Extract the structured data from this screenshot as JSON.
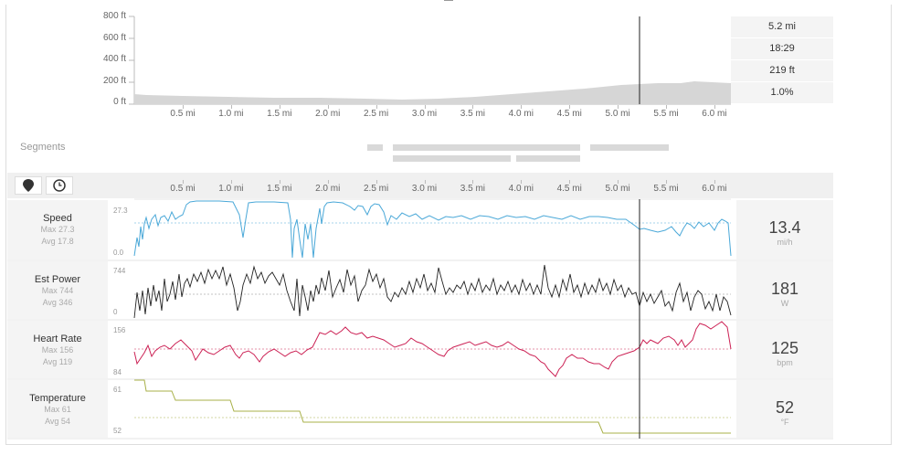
{
  "elevation": {
    "y_labels": [
      "800 ft",
      "600 ft",
      "400 ft",
      "200 ft",
      "0 ft"
    ],
    "x_labels": [
      "0.5 mi",
      "1.0 mi",
      "1.5 mi",
      "2.0 mi",
      "2.5 mi",
      "3.0 mi",
      "3.5 mi",
      "4.0 mi",
      "4.5 mi",
      "5.0 mi",
      "5.5 mi",
      "6.0 mi"
    ]
  },
  "summary": {
    "distance": "5.2 mi",
    "time": "18:29",
    "elevation": "219 ft",
    "grade": "1.0%"
  },
  "segments": {
    "label": "Segments"
  },
  "toolbar": {
    "location_icon": "map-pin-icon",
    "time_icon": "clock-icon"
  },
  "x_labels": [
    "0.5 mi",
    "1.0 mi",
    "1.5 mi",
    "2.0 mi",
    "2.5 mi",
    "3.0 mi",
    "3.5 mi",
    "4.0 mi",
    "4.5 mi",
    "5.0 mi",
    "5.5 mi",
    "6.0 mi"
  ],
  "metrics": {
    "speed": {
      "name": "Speed",
      "max": "Max 27.3",
      "avg": "Avg 17.8",
      "value": "13.4",
      "unit": "mi/h",
      "ymax": "27.3",
      "ymin": "0.0",
      "color": "#4aa8d8"
    },
    "power": {
      "name": "Est Power",
      "max": "Max 744",
      "avg": "Avg 346",
      "value": "181",
      "unit": "W",
      "ymax": "744",
      "ymin": "0",
      "color": "#222222"
    },
    "hr": {
      "name": "Heart Rate",
      "max": "Max 156",
      "avg": "Avg 119",
      "value": "125",
      "unit": "bpm",
      "ymax": "156",
      "ymin": "84",
      "color": "#cc2255"
    },
    "temp": {
      "name": "Temperature",
      "max": "Max 61",
      "avg": "Avg 54",
      "value": "52",
      "unit": "°F",
      "ymax": "61",
      "ymin": "52",
      "color": "#a8b048"
    }
  }
}
